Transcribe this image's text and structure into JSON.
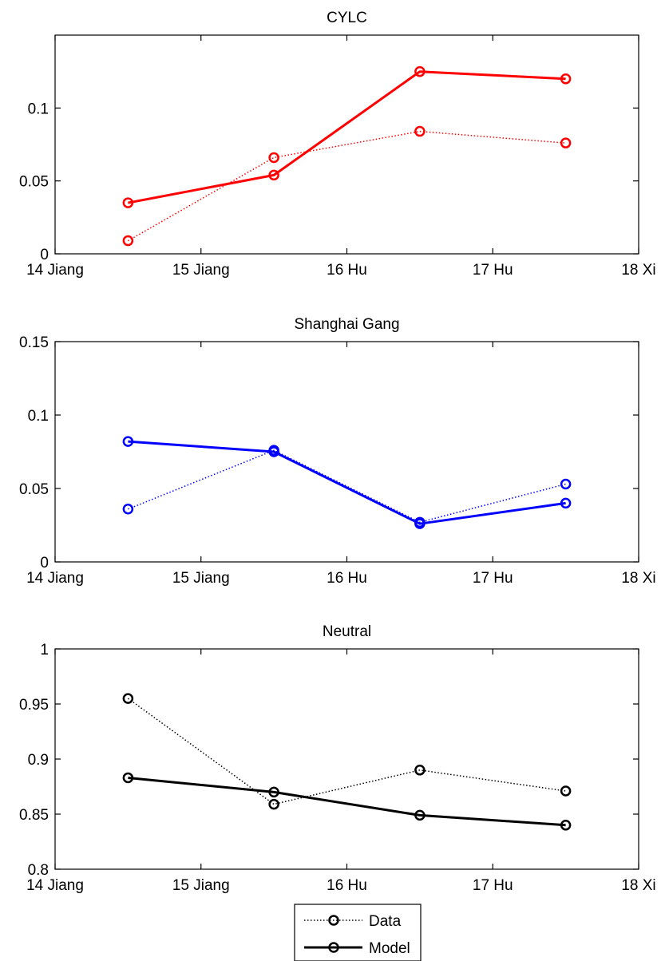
{
  "chart_data": [
    {
      "type": "line",
      "title": "CYLC",
      "x_tick_labels": [
        "14 Jiang",
        "15 Jiang",
        "16 Hu",
        "17 Hu",
        "18 Xi"
      ],
      "x_points": [
        0.5,
        1.5,
        2.5,
        3.5
      ],
      "xlim": [
        0,
        4
      ],
      "ylim": [
        0,
        0.15
      ],
      "y_ticks": [
        0,
        0.05,
        0.1
      ],
      "y_tick_labels": [
        "0",
        "0.05",
        "0.1"
      ],
      "color": "#ff0000",
      "series": [
        {
          "name": "Data",
          "style": "dotted",
          "values": [
            0.009,
            0.066,
            0.084,
            0.076
          ]
        },
        {
          "name": "Model",
          "style": "solid",
          "values": [
            0.035,
            0.054,
            0.125,
            0.12
          ]
        }
      ]
    },
    {
      "type": "line",
      "title": "Shanghai Gang",
      "x_tick_labels": [
        "14 Jiang",
        "15 Jiang",
        "16 Hu",
        "17 Hu",
        "18 Xi"
      ],
      "x_points": [
        0.5,
        1.5,
        2.5,
        3.5
      ],
      "xlim": [
        0,
        4
      ],
      "ylim": [
        0,
        0.15
      ],
      "y_ticks": [
        0,
        0.05,
        0.1,
        0.15
      ],
      "y_tick_labels": [
        "0",
        "0.05",
        "0.1",
        "0.15"
      ],
      "color": "#0000ff",
      "series": [
        {
          "name": "Data",
          "style": "dotted",
          "values": [
            0.036,
            0.076,
            0.027,
            0.053
          ]
        },
        {
          "name": "Model",
          "style": "solid",
          "values": [
            0.082,
            0.075,
            0.026,
            0.04
          ]
        }
      ]
    },
    {
      "type": "line",
      "title": "Neutral",
      "x_tick_labels": [
        "14 Jiang",
        "15 Jiang",
        "16 Hu",
        "17 Hu",
        "18 Xi"
      ],
      "x_points": [
        0.5,
        1.5,
        2.5,
        3.5
      ],
      "xlim": [
        0,
        4
      ],
      "ylim": [
        0.8,
        1
      ],
      "y_ticks": [
        0.8,
        0.85,
        0.9,
        0.95,
        1
      ],
      "y_tick_labels": [
        "0.8",
        "0.85",
        "0.9",
        "0.95",
        "1"
      ],
      "color": "#000000",
      "series": [
        {
          "name": "Data",
          "style": "dotted",
          "values": [
            0.955,
            0.859,
            0.89,
            0.871
          ]
        },
        {
          "name": "Model",
          "style": "solid",
          "values": [
            0.883,
            0.87,
            0.849,
            0.84
          ]
        }
      ]
    }
  ],
  "legend": {
    "placement": "bottom-center",
    "entries": [
      {
        "label": "Data",
        "style": "dotted"
      },
      {
        "label": "Model",
        "style": "solid"
      }
    ]
  }
}
